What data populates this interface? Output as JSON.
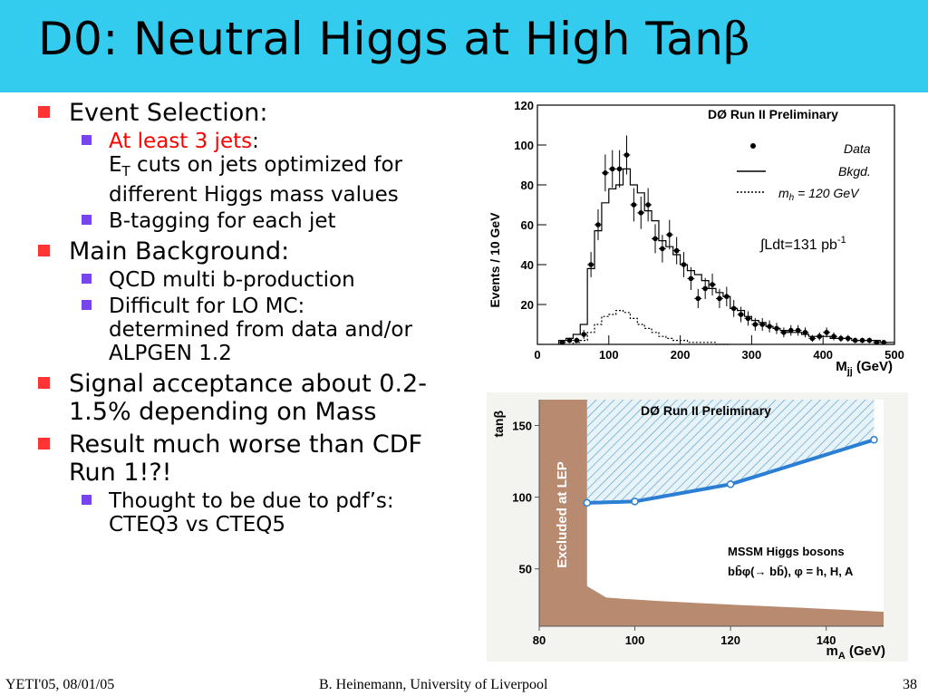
{
  "slide": {
    "title": "D0: Neutral Higgs at High Tan",
    "title_symbol": "β",
    "bullets": {
      "event_selection": "Event Selection:",
      "jets_red": "At least 3 jets",
      "jets_colon": ":",
      "et_main": "E",
      "et_sub": "T",
      "et_rest": " cuts on jets optimized for",
      "et_line2": "different Higgs mass values",
      "btag": "B-tagging for each jet",
      "main_bkg": "Main Background:",
      "qcd": "QCD multi b-production",
      "difficult_l1": "Difficult for LO MC:",
      "difficult_l2": "determined from data and/or",
      "difficult_l3": "ALPGEN 1.2",
      "signal_l1": "Signal acceptance about 0.2-",
      "signal_l2": "1.5% depending on Mass",
      "result_l1": "Result much worse than CDF",
      "result_l2": "Run 1!?!",
      "thought_l1": "Thought to be due to pdf’s:",
      "thought_l2": "CTEQ3 vs CTEQ5"
    },
    "footer": {
      "left": "YETI'05, 08/01/05",
      "center": "B. Heinemann, University of Liverpool",
      "page": "38"
    },
    "colors": {
      "title_bg": "#33ccee",
      "bullet_l1": "#ff3333",
      "bullet_l2": "#7744ee",
      "highlight": "#ff0000"
    }
  },
  "chart_data": [
    {
      "type": "histogram",
      "title": "DØ Run II Preliminary",
      "xlabel_main": "M",
      "xlabel_sub": "jj",
      "xlabel_unit": " (GeV)",
      "ylabel": "Events / 10 GeV",
      "xlim": [
        0,
        500
      ],
      "ylim": [
        0,
        120
      ],
      "xticks": [
        "0",
        "100",
        "200",
        "300",
        "400",
        "500"
      ],
      "yticks": [
        "20",
        "40",
        "60",
        "80",
        "100",
        "120"
      ],
      "legend": {
        "data": "Data",
        "bkgd": "Bkgd.",
        "signal_prefix": "m",
        "signal_sub": "h",
        "signal_rest": " = 120 GeV"
      },
      "lumi_text": "∫Ldt=131 pb",
      "lumi_sup": "-1",
      "data_points": [
        [
          35,
          1
        ],
        [
          45,
          2
        ],
        [
          55,
          2
        ],
        [
          65,
          5
        ],
        [
          75,
          40
        ],
        [
          85,
          60
        ],
        [
          95,
          86
        ],
        [
          105,
          88
        ],
        [
          115,
          88
        ],
        [
          125,
          95
        ],
        [
          135,
          70
        ],
        [
          145,
          66
        ],
        [
          155,
          70
        ],
        [
          165,
          53
        ],
        [
          175,
          48
        ],
        [
          185,
          55
        ],
        [
          195,
          47
        ],
        [
          205,
          40
        ],
        [
          215,
          33
        ],
        [
          225,
          23
        ],
        [
          235,
          28
        ],
        [
          245,
          30
        ],
        [
          255,
          23
        ],
        [
          265,
          24
        ],
        [
          275,
          18
        ],
        [
          285,
          15
        ],
        [
          295,
          13
        ],
        [
          305,
          10
        ],
        [
          315,
          10
        ],
        [
          325,
          9
        ],
        [
          335,
          8
        ],
        [
          345,
          6
        ],
        [
          355,
          7
        ],
        [
          365,
          7
        ],
        [
          375,
          6
        ],
        [
          385,
          3
        ],
        [
          395,
          4
        ],
        [
          405,
          6
        ],
        [
          415,
          4
        ],
        [
          425,
          3
        ],
        [
          435,
          3
        ],
        [
          445,
          2
        ],
        [
          455,
          2
        ],
        [
          465,
          2
        ],
        [
          475,
          1
        ],
        [
          485,
          1
        ]
      ],
      "background_bins": [
        [
          30,
          2
        ],
        [
          40,
          3
        ],
        [
          50,
          5
        ],
        [
          60,
          10
        ],
        [
          70,
          38
        ],
        [
          80,
          57
        ],
        [
          90,
          71
        ],
        [
          100,
          78
        ],
        [
          110,
          80
        ],
        [
          120,
          88
        ],
        [
          130,
          80
        ],
        [
          140,
          76
        ],
        [
          150,
          67
        ],
        [
          160,
          62
        ],
        [
          170,
          52
        ],
        [
          180,
          49
        ],
        [
          190,
          45
        ],
        [
          200,
          40
        ],
        [
          210,
          37
        ],
        [
          220,
          35
        ],
        [
          230,
          32
        ],
        [
          240,
          28
        ],
        [
          250,
          26
        ],
        [
          260,
          24
        ],
        [
          270,
          18
        ],
        [
          280,
          17
        ],
        [
          290,
          14
        ],
        [
          300,
          12
        ],
        [
          310,
          11
        ],
        [
          320,
          9
        ],
        [
          330,
          8
        ],
        [
          340,
          7
        ],
        [
          350,
          6
        ],
        [
          360,
          6
        ],
        [
          370,
          5
        ],
        [
          380,
          4
        ],
        [
          390,
          4
        ],
        [
          400,
          4
        ],
        [
          410,
          3
        ],
        [
          420,
          3
        ],
        [
          430,
          3
        ],
        [
          440,
          2
        ],
        [
          450,
          2
        ],
        [
          460,
          2
        ],
        [
          470,
          2
        ],
        [
          480,
          1
        ],
        [
          490,
          1
        ]
      ],
      "signal_bins": [
        [
          50,
          1
        ],
        [
          60,
          2
        ],
        [
          70,
          6
        ],
        [
          80,
          10
        ],
        [
          90,
          14
        ],
        [
          100,
          15
        ],
        [
          110,
          17
        ],
        [
          120,
          16
        ],
        [
          130,
          13
        ],
        [
          140,
          10
        ],
        [
          150,
          8
        ],
        [
          160,
          6
        ],
        [
          170,
          4
        ],
        [
          180,
          3
        ],
        [
          190,
          2
        ],
        [
          200,
          2
        ],
        [
          210,
          1
        ],
        [
          220,
          1
        ],
        [
          230,
          1
        ],
        [
          240,
          1
        ],
        [
          250,
          0
        ],
        [
          260,
          0
        ]
      ]
    },
    {
      "type": "line",
      "title": "DØ Run II Preliminary",
      "xlabel_main": "m",
      "xlabel_sub": "A",
      "xlabel_unit": " (GeV)",
      "ylabel": "tanβ",
      "xlim": [
        80,
        152
      ],
      "ylim": [
        10,
        168
      ],
      "xticks": [
        "80",
        "100",
        "120",
        "140"
      ],
      "yticks": [
        "50",
        "100",
        "150"
      ],
      "excluded_label": "Excluded at LEP",
      "annotation_l1": "MSSM Higgs bosons",
      "annotation_l2": "bb̄φ(→ bb̄), φ = h, H, A",
      "limit_points": [
        [
          90,
          96
        ],
        [
          100,
          97
        ],
        [
          120,
          109
        ],
        [
          150,
          140
        ]
      ]
    }
  ]
}
